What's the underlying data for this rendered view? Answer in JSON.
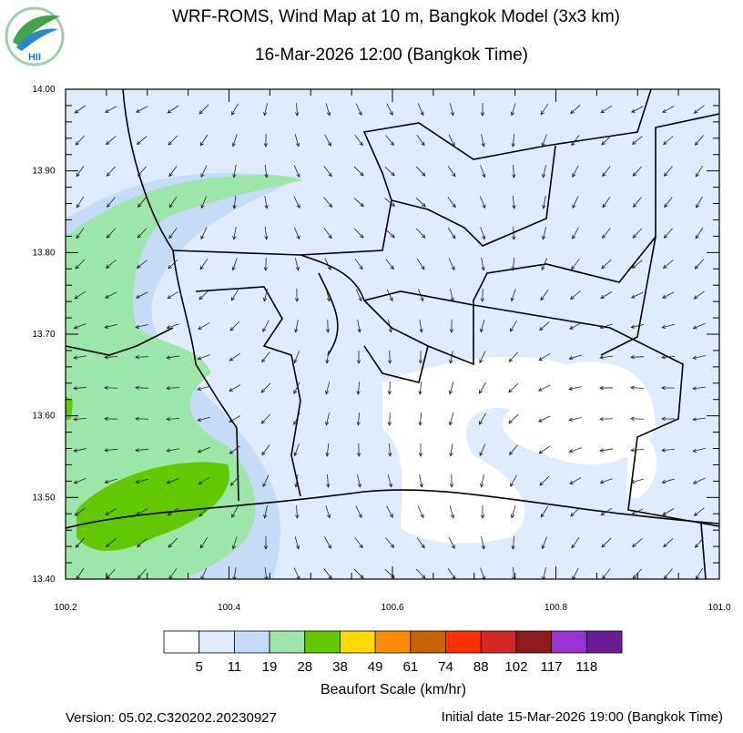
{
  "header": {
    "logo_text": "HII",
    "title": "WRF-ROMS, Wind Map at 10 m, Bangkok Model (3x3 km)",
    "subtitle": "16-Mar-2026 12:00 (Bangkok Time)"
  },
  "map": {
    "lon_range": [
      100.2,
      101.0
    ],
    "lat_range": [
      13.4,
      14.0
    ],
    "lon_ticks": [
      {
        "value": 100.2,
        "label": "100.2"
      },
      {
        "value": 100.4,
        "label": "100.4"
      },
      {
        "value": 100.6,
        "label": "100.6"
      },
      {
        "value": 100.8,
        "label": "100.8"
      },
      {
        "value": 101.0,
        "label": "101.0"
      }
    ],
    "lat_ticks": [
      {
        "value": 13.4,
        "label": "13.40"
      },
      {
        "value": 13.5,
        "label": "13.50"
      },
      {
        "value": 13.6,
        "label": "13.60"
      },
      {
        "value": 13.7,
        "label": "13.70"
      },
      {
        "value": 13.8,
        "label": "13.80"
      },
      {
        "value": 13.9,
        "label": "13.90"
      },
      {
        "value": 14.0,
        "label": "14.00"
      }
    ]
  },
  "legend": {
    "title": "Beaufort Scale (km/hr)",
    "colors": [
      "#ffffff",
      "#dfeafc",
      "#c4dbfa",
      "#9be6a8",
      "#63c800",
      "#ffd800",
      "#ff8c00",
      "#c86400",
      "#ff3000",
      "#d42828",
      "#8c1a1a",
      "#9932d4",
      "#6a1e96"
    ],
    "labels": [
      5,
      11,
      19,
      28,
      38,
      49,
      61,
      74,
      88,
      102,
      117,
      118
    ]
  },
  "footer": {
    "version": "Version: 05.02.C320202.20230927",
    "initial_date": "Initial date 15-Mar-2026 19:00 (Bangkok Time)"
  }
}
